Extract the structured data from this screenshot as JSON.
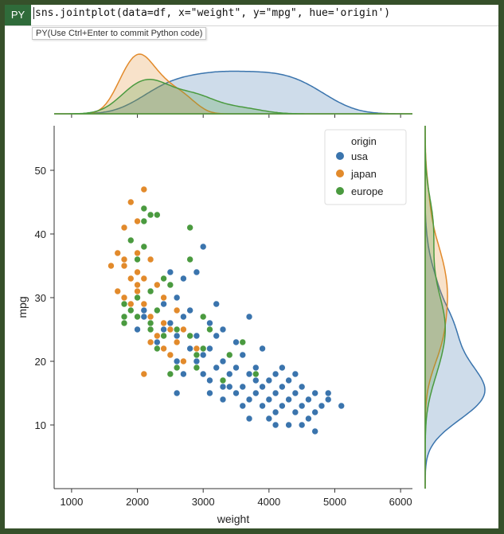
{
  "formula_bar": {
    "badge": "PY",
    "code": "sns.jointplot(data=df, x=\"weight\", y=\"mpg\", hue='origin')",
    "tooltip": "PY(Use Ctrl+Enter to commit Python code)"
  },
  "colors": {
    "usa": "#3a74ad",
    "japan": "#e28a2b",
    "europe": "#4a9a3f",
    "frame": "#36502a"
  },
  "chart_data": {
    "type": "scatter",
    "title": "",
    "xlabel": "weight",
    "ylabel": "mpg",
    "xlim": [
      735,
      6180
    ],
    "ylim": [
      0,
      57
    ],
    "xticks": [
      1000,
      2000,
      3000,
      4000,
      5000,
      6000
    ],
    "yticks": [
      10,
      20,
      30,
      40,
      50
    ],
    "legend": {
      "title": "origin",
      "placement": "top-right"
    },
    "marginals": "kde",
    "series": [
      {
        "name": "usa",
        "points": [
          [
            3000,
            38
          ],
          [
            2900,
            34
          ],
          [
            2700,
            33
          ],
          [
            2500,
            34
          ],
          [
            2300,
            32
          ],
          [
            2200,
            31
          ],
          [
            2400,
            29
          ],
          [
            2600,
            30
          ],
          [
            2800,
            28
          ],
          [
            2100,
            27
          ],
          [
            2000,
            25
          ],
          [
            2200,
            25
          ],
          [
            2500,
            26
          ],
          [
            2700,
            27
          ],
          [
            3100,
            26
          ],
          [
            3300,
            25
          ],
          [
            3700,
            27
          ],
          [
            2900,
            24
          ],
          [
            3200,
            24
          ],
          [
            3500,
            23
          ],
          [
            2800,
            22
          ],
          [
            3100,
            22
          ],
          [
            3400,
            21
          ],
          [
            3600,
            21
          ],
          [
            3900,
            22
          ],
          [
            2600,
            20
          ],
          [
            2900,
            20
          ],
          [
            3200,
            19
          ],
          [
            3300,
            20
          ],
          [
            3500,
            19
          ],
          [
            3800,
            19
          ],
          [
            4100,
            18
          ],
          [
            3000,
            18
          ],
          [
            3400,
            18
          ],
          [
            3700,
            18
          ],
          [
            4000,
            17
          ],
          [
            4300,
            17
          ],
          [
            2700,
            18
          ],
          [
            3100,
            17
          ],
          [
            3600,
            16
          ],
          [
            3900,
            16
          ],
          [
            4200,
            16
          ],
          [
            4500,
            16
          ],
          [
            3500,
            15
          ],
          [
            3800,
            15
          ],
          [
            4100,
            15
          ],
          [
            4400,
            15
          ],
          [
            4700,
            15
          ],
          [
            3300,
            14
          ],
          [
            3700,
            14
          ],
          [
            4000,
            14
          ],
          [
            4300,
            14
          ],
          [
            4600,
            14
          ],
          [
            4900,
            14
          ],
          [
            3900,
            13
          ],
          [
            4200,
            13
          ],
          [
            4500,
            13
          ],
          [
            4800,
            13
          ],
          [
            5100,
            13
          ],
          [
            4100,
            12
          ],
          [
            4400,
            12
          ],
          [
            4700,
            12
          ],
          [
            3700,
            11
          ],
          [
            4000,
            11
          ],
          [
            4600,
            11
          ],
          [
            4300,
            10
          ],
          [
            4700,
            9
          ],
          [
            3100,
            15
          ],
          [
            2600,
            15
          ],
          [
            3000,
            21
          ],
          [
            3400,
            16
          ],
          [
            4900,
            15
          ],
          [
            2400,
            25
          ],
          [
            2300,
            23
          ],
          [
            2100,
            28
          ],
          [
            3200,
            29
          ],
          [
            3600,
            13
          ],
          [
            4400,
            18
          ],
          [
            3800,
            17
          ],
          [
            4200,
            19
          ],
          [
            2500,
            21
          ],
          [
            3300,
            16
          ],
          [
            4100,
            10
          ],
          [
            4500,
            10
          ],
          [
            2600,
            24
          ]
        ]
      },
      {
        "name": "japan",
        "points": [
          [
            2100,
            47
          ],
          [
            1900,
            45
          ],
          [
            2000,
            42
          ],
          [
            1800,
            41
          ],
          [
            1900,
            39
          ],
          [
            2100,
            38
          ],
          [
            1700,
            37
          ],
          [
            2000,
            37
          ],
          [
            2200,
            36
          ],
          [
            1800,
            35
          ],
          [
            1600,
            35
          ],
          [
            2000,
            34
          ],
          [
            1900,
            33
          ],
          [
            2100,
            33
          ],
          [
            2300,
            32
          ],
          [
            1700,
            31
          ],
          [
            2000,
            31
          ],
          [
            2200,
            31
          ],
          [
            1800,
            30
          ],
          [
            2400,
            30
          ],
          [
            1900,
            29
          ],
          [
            2100,
            29
          ],
          [
            2300,
            28
          ],
          [
            2600,
            28
          ],
          [
            2000,
            27
          ],
          [
            2200,
            27
          ],
          [
            2400,
            26
          ],
          [
            2500,
            25
          ],
          [
            2700,
            25
          ],
          [
            2300,
            24
          ],
          [
            2200,
            23
          ],
          [
            2600,
            23
          ],
          [
            2800,
            24
          ],
          [
            2400,
            22
          ],
          [
            2100,
            18
          ],
          [
            2700,
            20
          ],
          [
            2900,
            22
          ],
          [
            2500,
            21
          ],
          [
            1800,
            36
          ],
          [
            2000,
            32
          ]
        ]
      },
      {
        "name": "europe",
        "points": [
          [
            2100,
            44
          ],
          [
            2200,
            43
          ],
          [
            2100,
            42
          ],
          [
            2300,
            43
          ],
          [
            2800,
            41
          ],
          [
            1900,
            39
          ],
          [
            2100,
            38
          ],
          [
            2000,
            36
          ],
          [
            2800,
            36
          ],
          [
            2400,
            33
          ],
          [
            2500,
            32
          ],
          [
            2200,
            31
          ],
          [
            2000,
            30
          ],
          [
            1800,
            29
          ],
          [
            1900,
            28
          ],
          [
            2300,
            28
          ],
          [
            2000,
            27
          ],
          [
            1800,
            27
          ],
          [
            2200,
            25
          ],
          [
            2600,
            25
          ],
          [
            3000,
            27
          ],
          [
            3100,
            25
          ],
          [
            1800,
            26
          ],
          [
            2400,
            24
          ],
          [
            2800,
            24
          ],
          [
            2900,
            21
          ],
          [
            2300,
            22
          ],
          [
            3000,
            22
          ],
          [
            3400,
            21
          ],
          [
            3600,
            23
          ],
          [
            2600,
            19
          ],
          [
            2900,
            19
          ],
          [
            3300,
            17
          ],
          [
            3800,
            18
          ],
          [
            2500,
            18
          ],
          [
            2200,
            26
          ]
        ]
      }
    ]
  }
}
